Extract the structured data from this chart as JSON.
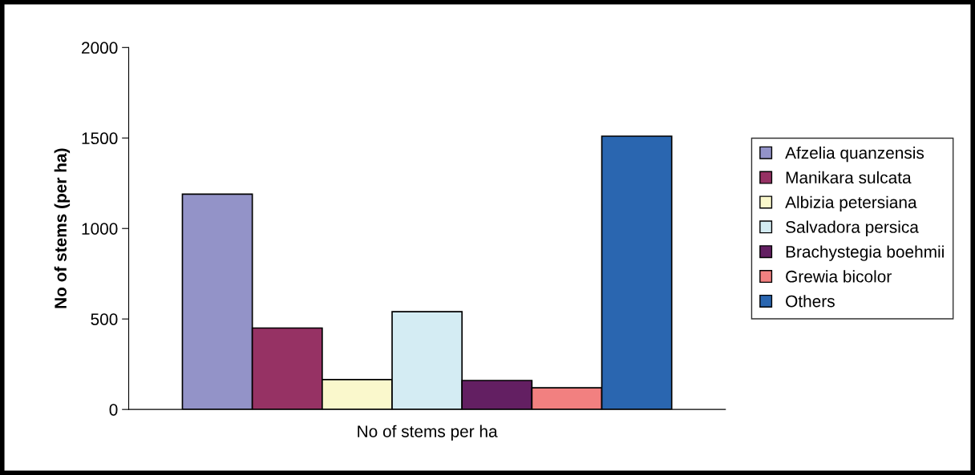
{
  "chart_data": {
    "type": "bar",
    "ylabel": "No of stems (per ha)",
    "categories": [
      "No of stems per ha"
    ],
    "series": [
      {
        "name": "Afzelia quanzensis",
        "color": "#9393c8",
        "values": [
          1190
        ]
      },
      {
        "name": "Manikara sulcata",
        "color": "#963264",
        "values": [
          450
        ]
      },
      {
        "name": "Albizia petersiana",
        "color": "#faf8cc",
        "values": [
          165
        ]
      },
      {
        "name": "Salvadora persica",
        "color": "#d4ecf3",
        "values": [
          540
        ]
      },
      {
        "name": "Brachystegia boehmii",
        "color": "#631f62",
        "values": [
          160
        ]
      },
      {
        "name": "Grewia bicolor",
        "color": "#f28080",
        "values": [
          120
        ]
      },
      {
        "name": "Others",
        "color": "#2a66b0",
        "values": [
          1510
        ]
      }
    ],
    "ylim": [
      0,
      2000
    ],
    "yticks": [
      0,
      500,
      1000,
      1500,
      2000
    ],
    "grid": false,
    "legend": "right"
  }
}
